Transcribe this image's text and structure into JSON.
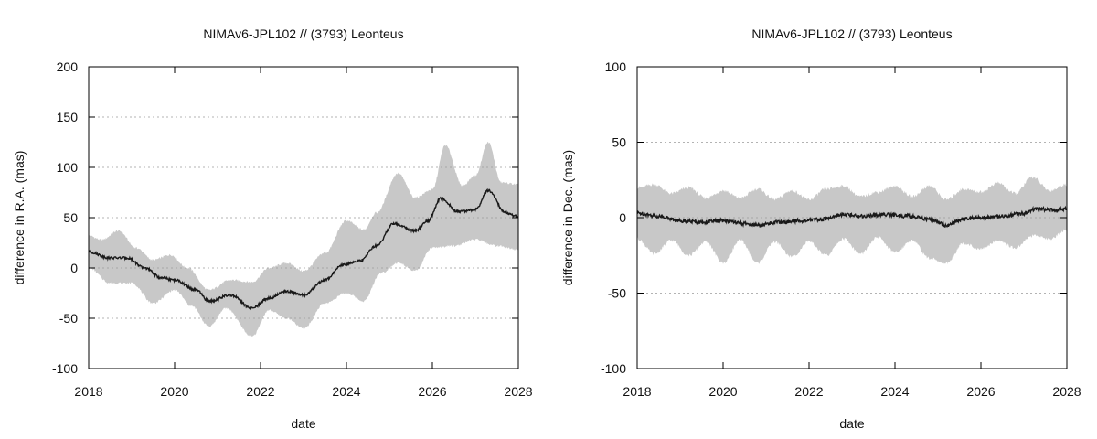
{
  "chart_data": [
    {
      "type": "line",
      "title": "NIMAv6-JPL102 // (3793) Leonteus",
      "xlabel": "date",
      "ylabel": "difference in R.A. (mas)",
      "xlim": [
        2018,
        2028
      ],
      "ylim": [
        -100,
        200
      ],
      "xticks": [
        "2018",
        "2020",
        "2022",
        "2024",
        "2026",
        "2028"
      ],
      "yticks": [
        "-100",
        "-50",
        "0",
        "50",
        "100",
        "150",
        "200"
      ],
      "grid": "horizontal dotted",
      "band_color": "#c8c8c8",
      "line_color": "#1a1a1a",
      "series": [
        {
          "role": "line",
          "x": [
            2018.0,
            2018.5,
            2018.9,
            2019.3,
            2019.7,
            2020.0,
            2020.5,
            2020.8,
            2021.3,
            2021.8,
            2022.2,
            2022.6,
            2023.0,
            2023.5,
            2023.9,
            2024.3,
            2024.7,
            2025.1,
            2025.6,
            2025.9,
            2026.2,
            2026.6,
            2027.0,
            2027.3,
            2027.7,
            2028.0
          ],
          "y": [
            16,
            10,
            10,
            0,
            -10,
            -12,
            -22,
            -33,
            -27,
            -40,
            -30,
            -23,
            -27,
            -12,
            3,
            7,
            22,
            44,
            37,
            47,
            69,
            56,
            58,
            77,
            55,
            51
          ]
        },
        {
          "role": "band-upper",
          "x": [
            2018.0,
            2018.3,
            2018.7,
            2019.1,
            2019.5,
            2019.9,
            2020.3,
            2020.8,
            2021.3,
            2021.8,
            2022.2,
            2022.6,
            2023.0,
            2023.5,
            2024.0,
            2024.4,
            2024.7,
            2025.2,
            2025.6,
            2026.0,
            2026.3,
            2026.7,
            2027.0,
            2027.3,
            2027.6,
            2028.0
          ],
          "y": [
            32,
            28,
            37,
            20,
            8,
            13,
            0,
            -22,
            -12,
            -14,
            0,
            5,
            -3,
            15,
            47,
            38,
            55,
            94,
            70,
            78,
            122,
            82,
            92,
            125,
            85,
            83
          ]
        },
        {
          "role": "band-lower",
          "x": [
            2018.0,
            2018.5,
            2019.0,
            2019.5,
            2020.0,
            2020.4,
            2020.8,
            2021.2,
            2021.8,
            2022.2,
            2022.6,
            2023.0,
            2023.5,
            2024.0,
            2024.4,
            2024.8,
            2025.2,
            2025.6,
            2026.0,
            2026.5,
            2027.0,
            2027.5,
            2028.0
          ],
          "y": [
            0,
            -15,
            -15,
            -35,
            -22,
            -38,
            -58,
            -40,
            -68,
            -42,
            -50,
            -60,
            -35,
            -25,
            -33,
            -5,
            5,
            -3,
            20,
            22,
            28,
            22,
            18
          ]
        }
      ]
    },
    {
      "type": "line",
      "title": "NIMAv6-JPL102 // (3793) Leonteus",
      "xlabel": "date",
      "ylabel": "difference in Dec. (mas)",
      "xlim": [
        2018,
        2028
      ],
      "ylim": [
        -100,
        100
      ],
      "xticks": [
        "2018",
        "2020",
        "2022",
        "2024",
        "2026",
        "2028"
      ],
      "yticks": [
        "-100",
        "-50",
        "0",
        "50",
        "100"
      ],
      "grid": "horizontal dotted",
      "band_color": "#c8c8c8",
      "line_color": "#1a1a1a",
      "series": [
        {
          "role": "line",
          "x": [
            2018.0,
            2018.5,
            2019.0,
            2019.5,
            2020.0,
            2020.5,
            2020.8,
            2021.3,
            2021.8,
            2022.3,
            2022.8,
            2023.3,
            2023.8,
            2024.3,
            2024.8,
            2025.2,
            2025.6,
            2026.0,
            2026.5,
            2027.0,
            2027.3,
            2027.7,
            2028.0
          ],
          "y": [
            3,
            1,
            -2,
            -3,
            -2,
            -4,
            -5,
            -3,
            -2,
            -1,
            2,
            1,
            2,
            1,
            -1,
            -5,
            -1,
            0,
            1,
            3,
            6,
            5,
            6
          ]
        },
        {
          "role": "band-upper",
          "x": [
            2018.0,
            2018.4,
            2018.8,
            2019.2,
            2019.6,
            2020.0,
            2020.4,
            2020.8,
            2021.2,
            2021.6,
            2022.0,
            2022.4,
            2022.8,
            2023.2,
            2023.6,
            2024.0,
            2024.4,
            2024.8,
            2025.2,
            2025.6,
            2026.0,
            2026.4,
            2026.8,
            2027.2,
            2027.6,
            2028.0
          ],
          "y": [
            20,
            22,
            16,
            20,
            13,
            18,
            13,
            19,
            12,
            18,
            12,
            19,
            21,
            14,
            17,
            21,
            14,
            21,
            12,
            19,
            17,
            23,
            16,
            27,
            18,
            22
          ]
        },
        {
          "role": "band-lower",
          "x": [
            2018.0,
            2018.4,
            2018.8,
            2019.2,
            2019.6,
            2020.0,
            2020.4,
            2020.8,
            2021.2,
            2021.6,
            2022.0,
            2022.4,
            2022.8,
            2023.2,
            2023.6,
            2024.0,
            2024.4,
            2024.8,
            2025.2,
            2025.6,
            2026.0,
            2026.4,
            2026.8,
            2027.2,
            2027.6,
            2028.0
          ],
          "y": [
            -14,
            -24,
            -15,
            -25,
            -16,
            -30,
            -15,
            -30,
            -16,
            -26,
            -16,
            -25,
            -14,
            -24,
            -13,
            -23,
            -15,
            -27,
            -30,
            -17,
            -21,
            -15,
            -20,
            -12,
            -14,
            -8
          ]
        }
      ]
    }
  ]
}
